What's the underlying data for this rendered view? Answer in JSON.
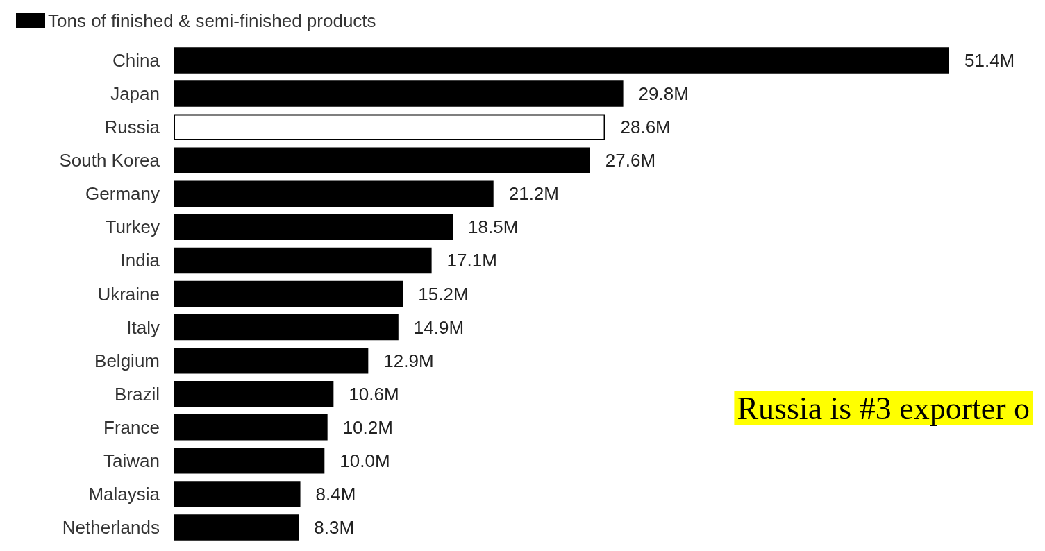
{
  "chart_data": {
    "type": "bar",
    "orientation": "horizontal",
    "legend": "top left",
    "categories": [
      "China",
      "Japan",
      "Russia",
      "South Korea",
      "Germany",
      "Turkey",
      "India",
      "Ukraine",
      "Italy",
      "Belgium",
      "Brazil",
      "France",
      "Taiwan",
      "Malaysia",
      "Netherlands"
    ],
    "series": [
      {
        "name": "Tons of finished & semi-finished products",
        "color": "#000000",
        "colors": [
          "#000000",
          "#000000",
          "#ffffff",
          "#000000",
          "#000000",
          "#000000",
          "#000000",
          "#000000",
          "#000000",
          "#000000",
          "#000000",
          "#000000",
          "#000000",
          "#000000",
          "#000000"
        ],
        "values": [
          51.4,
          29.8,
          28.6,
          27.6,
          21.2,
          18.5,
          17.1,
          15.2,
          14.9,
          12.9,
          10.6,
          10.2,
          10.0,
          8.4,
          8.3
        ],
        "value_labels": [
          "51.4M",
          "29.8M",
          "28.6M",
          "27.6M",
          "21.2M",
          "18.5M",
          "17.1M",
          "15.2M",
          "14.9M",
          "12.9M",
          "10.6M",
          "10.2M",
          "10.0M",
          "8.4M",
          "8.3M"
        ]
      }
    ],
    "annotations": [
      "Russia is #3 exporter o"
    ]
  }
}
